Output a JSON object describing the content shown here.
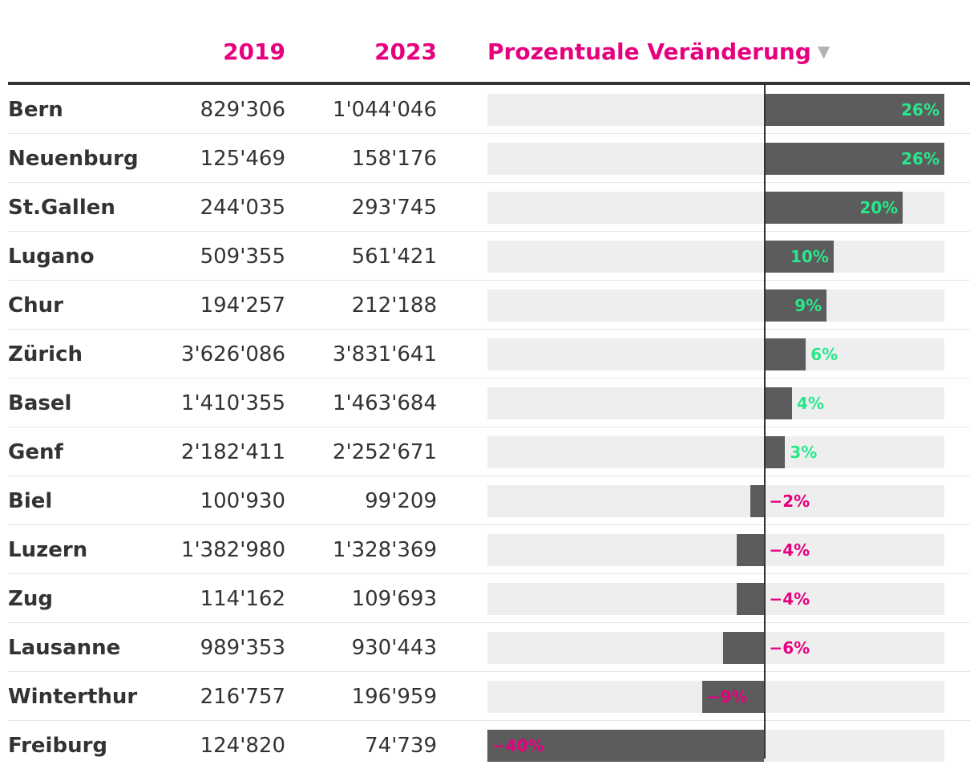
{
  "header": {
    "col_2019": "2019",
    "col_2023": "2023",
    "col_change": "Prozentuale Veränderung",
    "sort_indicator": "▼"
  },
  "rows": [
    {
      "city": "Bern",
      "v2019": "829'306",
      "v2023": "1'044'046",
      "pct_label": "26%"
    },
    {
      "city": "Neuenburg",
      "v2019": "125'469",
      "v2023": "158'176",
      "pct_label": "26%"
    },
    {
      "city": "St.Gallen",
      "v2019": "244'035",
      "v2023": "293'745",
      "pct_label": "20%"
    },
    {
      "city": "Lugano",
      "v2019": "509'355",
      "v2023": "561'421",
      "pct_label": "10%"
    },
    {
      "city": "Chur",
      "v2019": "194'257",
      "v2023": "212'188",
      "pct_label": "9%"
    },
    {
      "city": "Zürich",
      "v2019": "3'626'086",
      "v2023": "3'831'641",
      "pct_label": "6%"
    },
    {
      "city": "Basel",
      "v2019": "1'410'355",
      "v2023": "1'463'684",
      "pct_label": "4%"
    },
    {
      "city": "Genf",
      "v2019": "2'182'411",
      "v2023": "2'252'671",
      "pct_label": "3%"
    },
    {
      "city": "Biel",
      "v2019": "100'930",
      "v2023": "99'209",
      "pct_label": "−2%"
    },
    {
      "city": "Luzern",
      "v2019": "1'382'980",
      "v2023": "1'328'369",
      "pct_label": "−4%"
    },
    {
      "city": "Zug",
      "v2019": "114'162",
      "v2023": "109'693",
      "pct_label": "−4%"
    },
    {
      "city": "Lausanne",
      "v2019": "989'353",
      "v2023": "930'443",
      "pct_label": "−6%"
    },
    {
      "city": "Winterthur",
      "v2019": "216'757",
      "v2023": "196'959",
      "pct_label": "−9%"
    },
    {
      "city": "Freiburg",
      "v2019": "124'820",
      "v2023": "74'739",
      "pct_label": "−40%"
    }
  ],
  "chart_data": {
    "type": "bar",
    "orientation": "horizontal",
    "title": "",
    "columns": [
      "2019",
      "2023",
      "Prozentuale Veränderung"
    ],
    "categories": [
      "Bern",
      "Neuenburg",
      "St.Gallen",
      "Lugano",
      "Chur",
      "Zürich",
      "Basel",
      "Genf",
      "Biel",
      "Luzern",
      "Zug",
      "Lausanne",
      "Winterthur",
      "Freiburg"
    ],
    "values": [
      26,
      26,
      20,
      10,
      9,
      6,
      4,
      3,
      -2,
      -4,
      -4,
      -6,
      -9,
      -40
    ],
    "xlim": [
      -40,
      26
    ],
    "unit": "%",
    "positive_color": "#28e88a",
    "negative_color": "#e6007e",
    "bar_color": "#5c5c5c",
    "track_color": "#eeeeee"
  },
  "colors": {
    "header_accent": "#e6007e",
    "text": "#333333",
    "positive": "#28e88a",
    "negative": "#e6007e"
  }
}
